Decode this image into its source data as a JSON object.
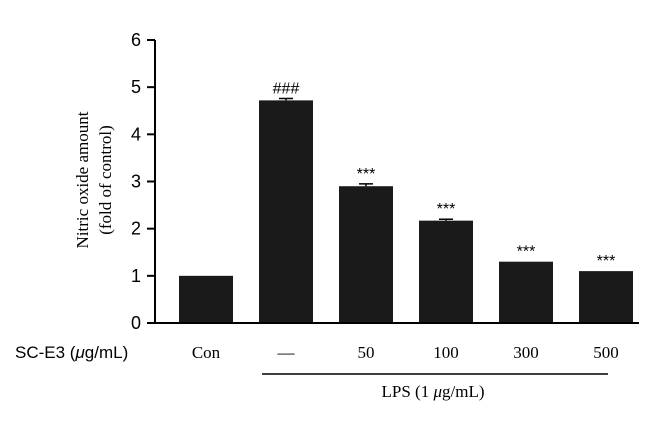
{
  "chart_data": {
    "type": "bar",
    "ylabel_line1": "Nitric oxide amount",
    "ylabel_line2": "(fold of control)",
    "x_row_label_prefix": "SC-E3 (",
    "x_row_label_mu": "μ",
    "x_row_label_suffix": "g/mL)",
    "group_label_prefix": "LPS (1 ",
    "group_label_mu": "μ",
    "group_label_suffix": "g/mL)",
    "categories": [
      "Con",
      "—",
      "50",
      "100",
      "300",
      "500"
    ],
    "values": [
      1.0,
      4.72,
      2.9,
      2.17,
      1.3,
      1.1
    ],
    "errors": [
      0,
      0.04,
      0.05,
      0.03,
      0,
      0
    ],
    "annotations": [
      "",
      "###",
      "***",
      "***",
      "***",
      "***"
    ],
    "ylim": [
      0,
      6
    ],
    "yticks": [
      "0",
      "1",
      "2",
      "3",
      "4",
      "5",
      "6"
    ],
    "bar_color": "#1a1a1a",
    "grid": false,
    "legend": "none"
  }
}
